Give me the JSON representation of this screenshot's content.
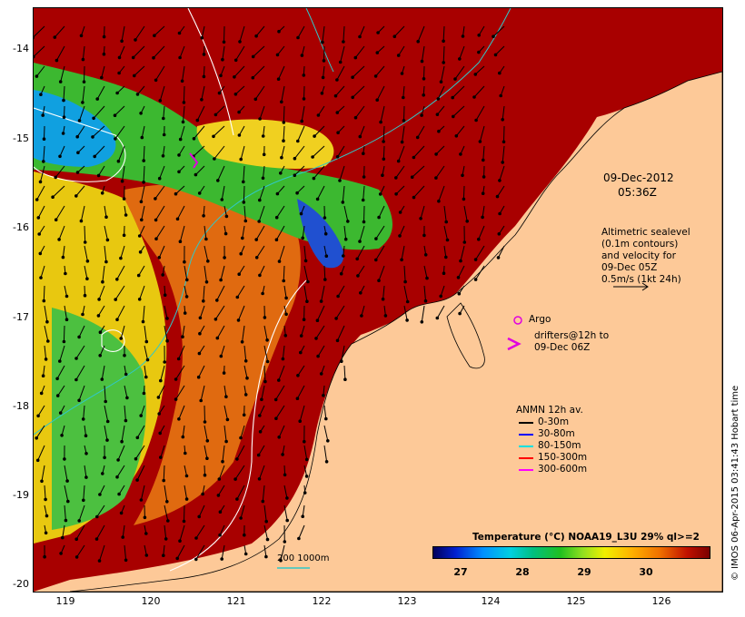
{
  "map": {
    "lon_ticks": [
      "119",
      "120",
      "121",
      "122",
      "123",
      "124",
      "125",
      "126"
    ],
    "lat_ticks": [
      "-14",
      "-15",
      "-16",
      "-17",
      "-18",
      "-19",
      "-20"
    ],
    "colors": {
      "land": "#fdc998",
      "warm_sst": "#a80000",
      "mid_sst": "#f07000",
      "cool_sst": "#20c020",
      "cold_sst": "#00a0ff",
      "contour": "#ffffff",
      "isobath": "#30c8c8",
      "argo": "#e000e0"
    }
  },
  "annotations": {
    "date": "09-Dec-2012",
    "time": "05:36Z",
    "altimetry": [
      "Altimetric sealevel",
      "(0.1m contours)",
      "and velocity for",
      "09-Dec 05Z",
      "0.5m/s (1kt 24h)"
    ],
    "argo": "Argo",
    "drifters": [
      "drifters@12h to",
      "09-Dec 06Z"
    ]
  },
  "legend": {
    "title": "ANMN 12h av.",
    "items": [
      {
        "label": "0-30m",
        "color": "#000000"
      },
      {
        "label": "30-80m",
        "color": "#0000ff"
      },
      {
        "label": "80-150m",
        "color": "#00e0e0"
      },
      {
        "label": "150-300m",
        "color": "#ff0000"
      },
      {
        "label": "300-600m",
        "color": "#ff00ff"
      }
    ]
  },
  "colorbar": {
    "title": "Temperature (°C) NOAA19_L3U 29% ql>=2",
    "ticks": [
      "27",
      "28",
      "29",
      "30"
    ]
  },
  "scale": {
    "label": "200  1000m"
  },
  "credit": "© IMOS 06-Apr-2015 03:41:43 Hobart time"
}
